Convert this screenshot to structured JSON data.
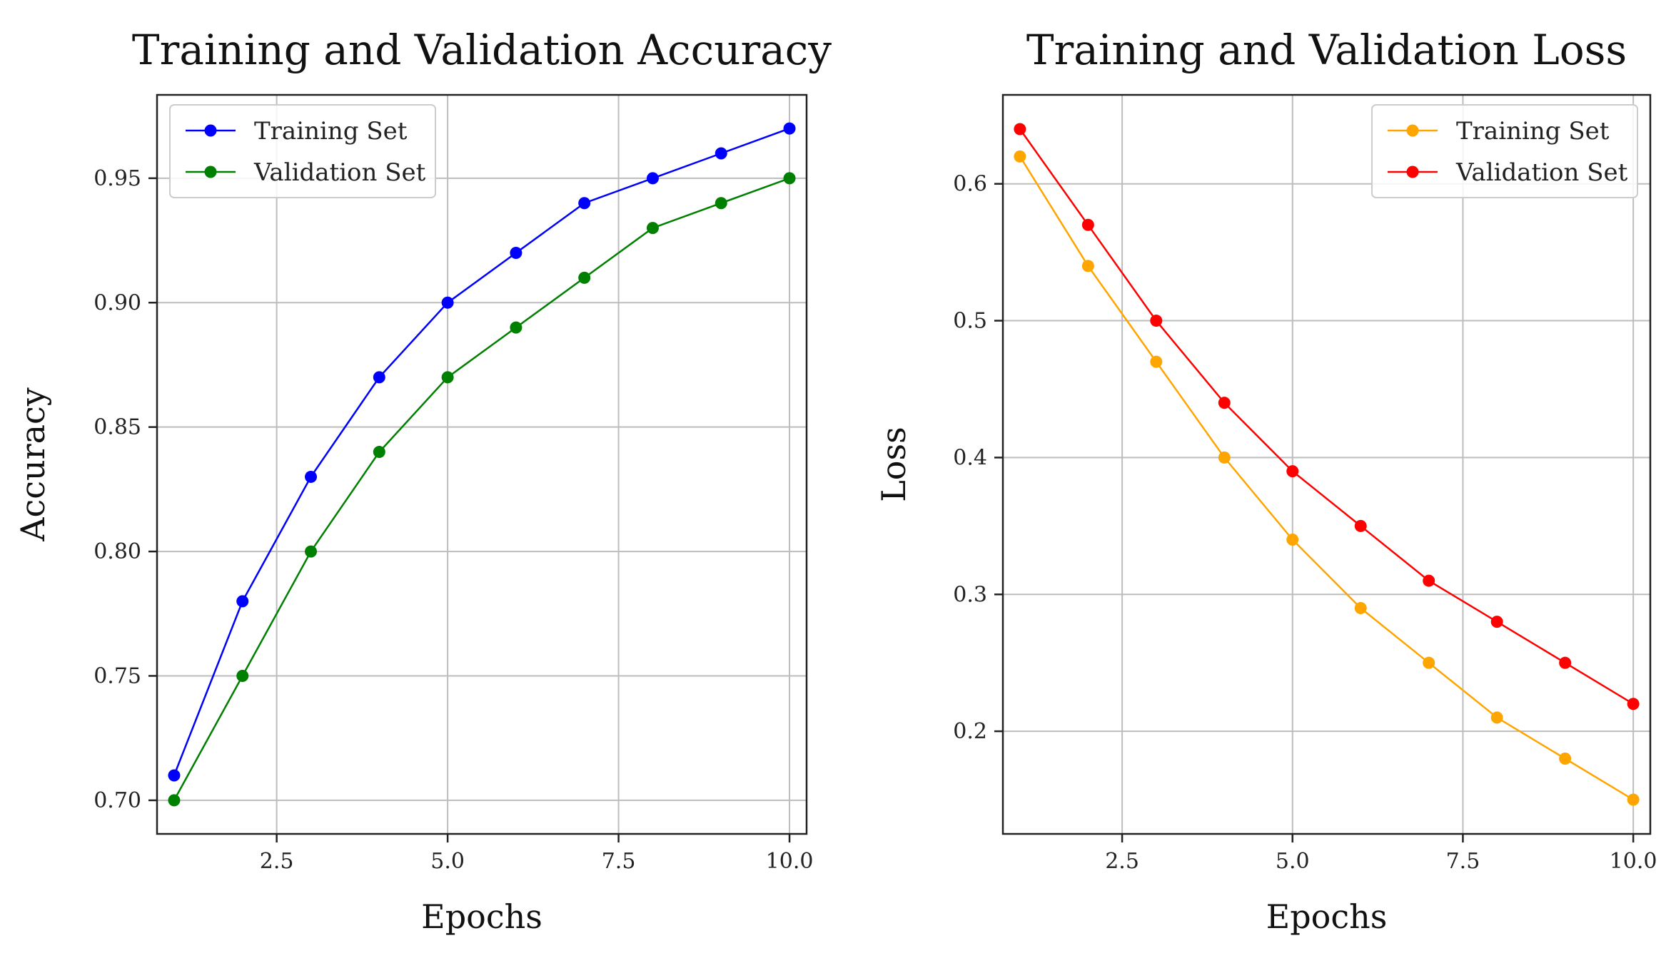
{
  "chart_data": [
    {
      "type": "line",
      "title": "Training and Validation Accuracy",
      "xlabel": "Epochs",
      "ylabel": "Accuracy",
      "x": [
        1,
        2,
        3,
        4,
        5,
        6,
        7,
        8,
        9,
        10
      ],
      "xlim": [
        0.75,
        10.25
      ],
      "ylim": [
        0.6865,
        0.9835
      ],
      "xticks": [
        2.5,
        5.0,
        7.5,
        10.0
      ],
      "xtick_labels": [
        "2.5",
        "5.0",
        "7.5",
        "10.0"
      ],
      "yticks": [
        0.7,
        0.75,
        0.8,
        0.85,
        0.9,
        0.95
      ],
      "ytick_labels": [
        "0.70",
        "0.75",
        "0.80",
        "0.85",
        "0.90",
        "0.95"
      ],
      "grid": true,
      "legend_position": "upper-left",
      "series": [
        {
          "name": "Training Set",
          "color": "#0000ff",
          "values": [
            0.71,
            0.78,
            0.83,
            0.87,
            0.9,
            0.92,
            0.94,
            0.95,
            0.96,
            0.97
          ]
        },
        {
          "name": "Validation Set",
          "color": "#008000",
          "values": [
            0.7,
            0.75,
            0.8,
            0.84,
            0.87,
            0.89,
            0.91,
            0.93,
            0.94,
            0.95
          ]
        }
      ]
    },
    {
      "type": "line",
      "title": "Training and Validation Loss",
      "xlabel": "Epochs",
      "ylabel": "Loss",
      "x": [
        1,
        2,
        3,
        4,
        5,
        6,
        7,
        8,
        9,
        10
      ],
      "xlim": [
        0.75,
        10.25
      ],
      "ylim": [
        0.125,
        0.665
      ],
      "xticks": [
        2.5,
        5.0,
        7.5,
        10.0
      ],
      "xtick_labels": [
        "2.5",
        "5.0",
        "7.5",
        "10.0"
      ],
      "yticks": [
        0.2,
        0.3,
        0.4,
        0.5,
        0.6
      ],
      "ytick_labels": [
        "0.2",
        "0.3",
        "0.4",
        "0.5",
        "0.6"
      ],
      "grid": true,
      "legend_position": "upper-right",
      "series": [
        {
          "name": "Training Set",
          "color": "#ffa500",
          "values": [
            0.62,
            0.54,
            0.47,
            0.4,
            0.34,
            0.29,
            0.25,
            0.21,
            0.18,
            0.15
          ]
        },
        {
          "name": "Validation Set",
          "color": "#ff0000",
          "values": [
            0.64,
            0.57,
            0.5,
            0.44,
            0.39,
            0.35,
            0.31,
            0.28,
            0.25,
            0.22
          ]
        }
      ]
    }
  ]
}
